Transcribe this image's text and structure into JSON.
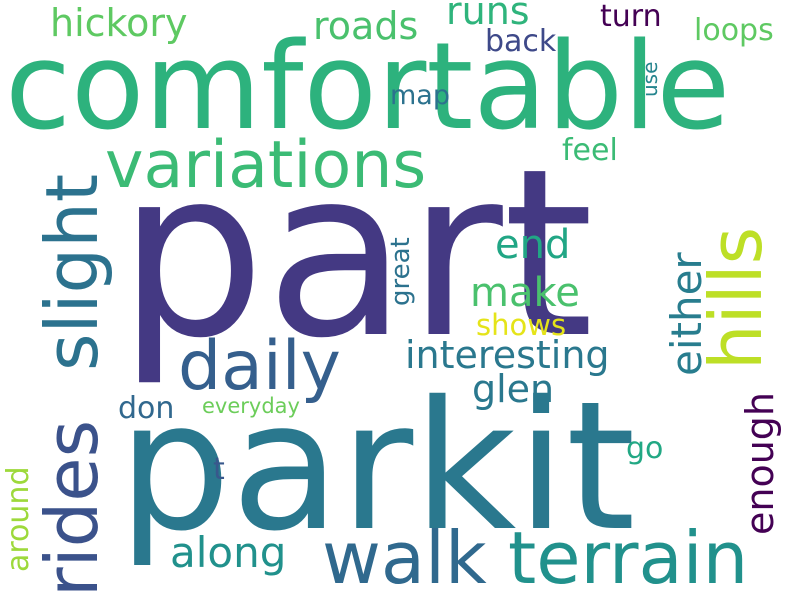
{
  "words": [
    {
      "text": "part",
      "color": "#443983"
    },
    {
      "text": "parkit",
      "color": "#2a788e"
    },
    {
      "text": "comfortable",
      "color": "#2db27d"
    },
    {
      "text": "variations",
      "color": "#3bbb75"
    },
    {
      "text": "daily",
      "color": "#355f8d"
    },
    {
      "text": "walk",
      "color": "#30698e"
    },
    {
      "text": "terrain",
      "color": "#21918c"
    },
    {
      "text": "rides",
      "color": "#3b528b"
    },
    {
      "text": "slight",
      "color": "#2c728e"
    },
    {
      "text": "hills",
      "color": "#bddf26"
    },
    {
      "text": "interesting",
      "color": "#2a788e"
    },
    {
      "text": "either",
      "color": "#287d8e"
    },
    {
      "text": "enough",
      "color": "#440154"
    },
    {
      "text": "make",
      "color": "#4ac16d"
    },
    {
      "text": "end",
      "color": "#21a685"
    },
    {
      "text": "glen",
      "color": "#2a788e"
    },
    {
      "text": "hickory",
      "color": "#5ec962"
    },
    {
      "text": "roads",
      "color": "#4ac16d"
    },
    {
      "text": "runs",
      "color": "#2fb47c"
    },
    {
      "text": "turn",
      "color": "#440154"
    },
    {
      "text": "loops",
      "color": "#5ec962"
    },
    {
      "text": "back",
      "color": "#3e4989"
    },
    {
      "text": "map",
      "color": "#2c728e"
    },
    {
      "text": "use",
      "color": "#25858e"
    },
    {
      "text": "feel",
      "color": "#3bbb75"
    },
    {
      "text": "great",
      "color": "#2c728e"
    },
    {
      "text": "shows",
      "color": "#e5e419"
    },
    {
      "text": "along",
      "color": "#21918c"
    },
    {
      "text": "don",
      "color": "#31688e"
    },
    {
      "text": "everyday",
      "color": "#6ccd5a"
    },
    {
      "text": "t",
      "color": "#38588c"
    },
    {
      "text": "go",
      "color": "#22a884"
    },
    {
      "text": "around",
      "color": "#9dd93b"
    }
  ]
}
